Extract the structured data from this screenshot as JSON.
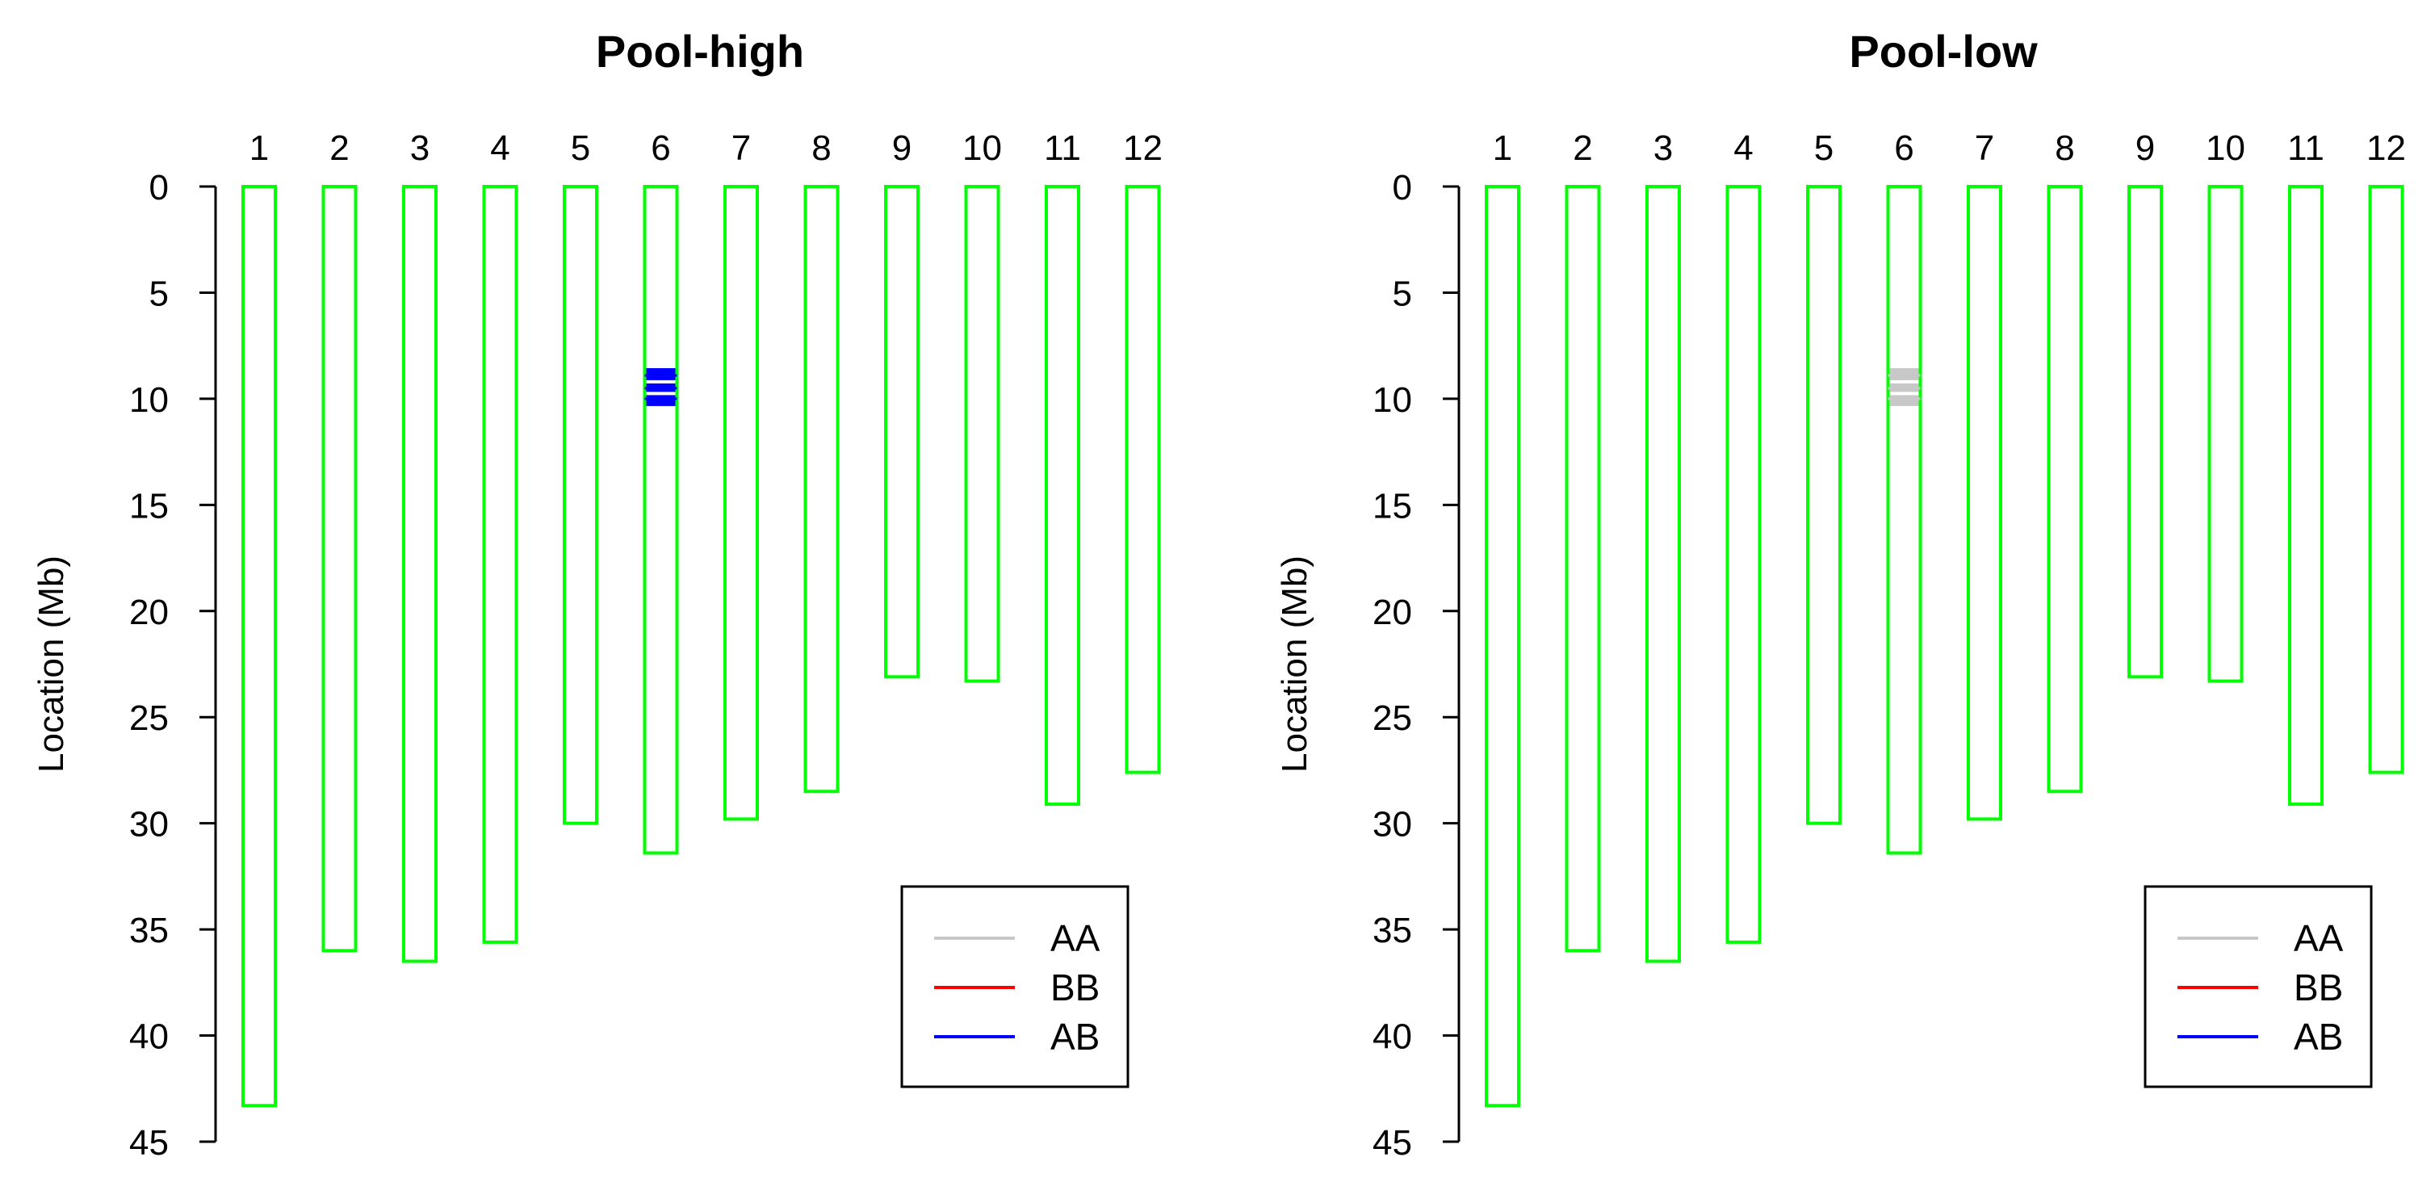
{
  "chart_data": [
    {
      "type": "chromosome-map",
      "title": "Pool-high",
      "ylabel": "Location (Mb)",
      "xlabel": "",
      "ylim": [
        0,
        45
      ],
      "yticks": [
        0,
        5,
        10,
        15,
        20,
        25,
        30,
        35,
        40,
        45
      ],
      "categories": [
        "1",
        "2",
        "3",
        "4",
        "5",
        "6",
        "7",
        "8",
        "9",
        "10",
        "11",
        "12"
      ],
      "chromosome_lengths": [
        43.3,
        36.0,
        36.5,
        35.6,
        30.0,
        31.4,
        29.8,
        28.5,
        23.1,
        23.3,
        29.1,
        27.6
      ],
      "chromosome_color": "#00ff00",
      "markers": [
        {
          "chromosome": "6",
          "positions": [
            8.9,
            9.5,
            10.0
          ],
          "genotype": "AB",
          "color": "#0000ff"
        }
      ],
      "legend": {
        "position": "bottom-right",
        "entries": [
          {
            "label": "AA",
            "color": "#c8c8c8"
          },
          {
            "label": "BB",
            "color": "#ff0000"
          },
          {
            "label": "AB",
            "color": "#0000ff"
          }
        ]
      }
    },
    {
      "type": "chromosome-map",
      "title": "Pool-low",
      "ylabel": "Location (Mb)",
      "xlabel": "",
      "ylim": [
        0,
        45
      ],
      "yticks": [
        0,
        5,
        10,
        15,
        20,
        25,
        30,
        35,
        40,
        45
      ],
      "categories": [
        "1",
        "2",
        "3",
        "4",
        "5",
        "6",
        "7",
        "8",
        "9",
        "10",
        "11",
        "12"
      ],
      "chromosome_lengths": [
        43.3,
        36.0,
        36.5,
        35.6,
        30.0,
        31.4,
        29.8,
        28.5,
        23.1,
        23.3,
        29.1,
        27.6
      ],
      "chromosome_color": "#00ff00",
      "markers": [
        {
          "chromosome": "6",
          "positions": [
            8.9,
            9.5,
            10.0
          ],
          "genotype": "AA",
          "color": "#c8c8c8"
        }
      ],
      "legend": {
        "position": "bottom-right",
        "entries": [
          {
            "label": "AA",
            "color": "#c8c8c8"
          },
          {
            "label": "BB",
            "color": "#ff0000"
          },
          {
            "label": "AB",
            "color": "#0000ff"
          }
        ]
      }
    }
  ]
}
